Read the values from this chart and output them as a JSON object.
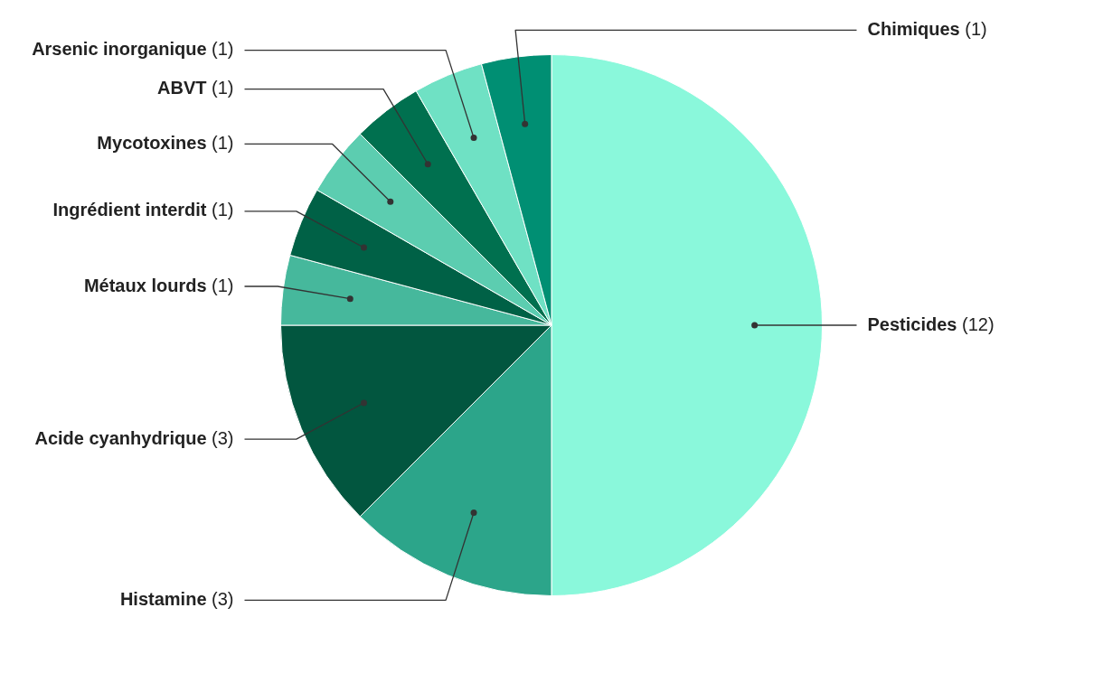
{
  "chart_data": {
    "type": "pie",
    "categories": [
      "Pesticides",
      "Histamine",
      "Acide cyanhydrique",
      "Métaux lourds",
      "Ingrédient interdit",
      "Mycotoxines",
      "ABVT",
      "Arsenic inorganique",
      "Chimiques"
    ],
    "values": [
      12,
      3,
      3,
      1,
      1,
      1,
      1,
      1,
      1
    ],
    "colors": [
      "#8af8db",
      "#2ca58a",
      "#02563f",
      "#46b89c",
      "#006146",
      "#5ccdb0",
      "#00704f",
      "#6fe1c4",
      "#008f73"
    ],
    "value_labels": [
      "(12)",
      "(3)",
      "(3)",
      "(1)",
      "(1)",
      "(1)",
      "(1)",
      "(1)",
      "(1)"
    ],
    "legend": false
  }
}
